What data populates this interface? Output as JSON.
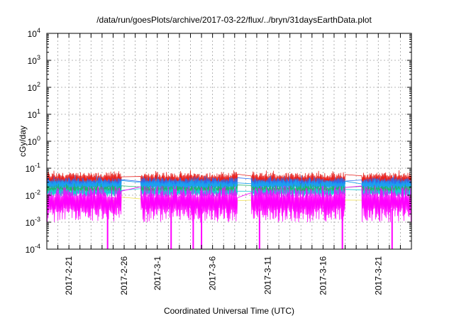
{
  "chart_data": {
    "type": "line",
    "title": "/data/run/goesPlots/archive/2017-03-22/flux/../bryn/31daysEarthData.plot",
    "xlabel": "Coordinated Universal Time (UTC)",
    "ylabel": "cGy/day",
    "yscale": "log",
    "ylim": [
      0.0001,
      10000
    ],
    "xlim": [
      "2017-02-19",
      "2017-03-24"
    ],
    "grid": true,
    "y_ticks": [
      {
        "base": "10",
        "exp": "-4",
        "value": 0.0001
      },
      {
        "base": "10",
        "exp": "-3",
        "value": 0.001
      },
      {
        "base": "10",
        "exp": "-2",
        "value": 0.01
      },
      {
        "base": "10",
        "exp": "-1",
        "value": 0.1
      },
      {
        "base": "10",
        "exp": "0",
        "value": 1
      },
      {
        "base": "10",
        "exp": "1",
        "value": 10
      },
      {
        "base": "10",
        "exp": "2",
        "value": 100
      },
      {
        "base": "10",
        "exp": "3",
        "value": 1000
      },
      {
        "base": "10",
        "exp": "4",
        "value": 10000
      }
    ],
    "x_ticks": [
      {
        "label": "2017-2-21",
        "date": "2017-02-21"
      },
      {
        "label": "2017-2-26",
        "date": "2017-02-26"
      },
      {
        "label": "2017-3-1",
        "date": "2017-03-01"
      },
      {
        "label": "2017-3-6",
        "date": "2017-03-06"
      },
      {
        "label": "2017-3-11",
        "date": "2017-03-11"
      },
      {
        "label": "2017-3-16",
        "date": "2017-03-16"
      },
      {
        "label": "2017-3-21",
        "date": "2017-03-21"
      }
    ],
    "data_segments": [
      {
        "start": "2017-02-19",
        "end": "2017-02-25T18:00"
      },
      {
        "start": "2017-02-27T12:00",
        "end": "2017-03-08T06:00"
      },
      {
        "start": "2017-03-09T12:00",
        "end": "2017-03-18T00:00"
      },
      {
        "start": "2017-03-19T12:00",
        "end": "2017-03-24"
      }
    ],
    "series": [
      {
        "color": "#e8211e",
        "typical": 0.045,
        "spread": 0.35,
        "spike_max": 0.085
      },
      {
        "color": "#2a6cf0",
        "typical": 0.032,
        "spread": 0.3,
        "spike_max": 0.055
      },
      {
        "color": "#1ba0f0",
        "typical": 0.026,
        "spread": 0.25,
        "spike_max": 0.04
      },
      {
        "color": "#1fb36a",
        "typical": 0.018,
        "spread": 0.2,
        "spike_max": 0.028
      },
      {
        "color": "#19c9d6",
        "typical": 0.014,
        "spread": 0.2,
        "spike_max": 0.022
      },
      {
        "color": "#f2e25a",
        "typical": 0.006,
        "spread": 0.25,
        "spike_max": 0.009
      },
      {
        "color": "#ff00ff",
        "typical": 0.008,
        "spread": 0.9,
        "spike_max": 0.02,
        "dropouts": [
          "2017-02-24T12:00",
          "2017-03-02T06:00",
          "2017-03-04T06:00",
          "2017-03-05T00:00",
          "2017-03-10T06:00",
          "2017-03-17T18:00",
          "2017-03-22T06:00"
        ]
      }
    ]
  }
}
